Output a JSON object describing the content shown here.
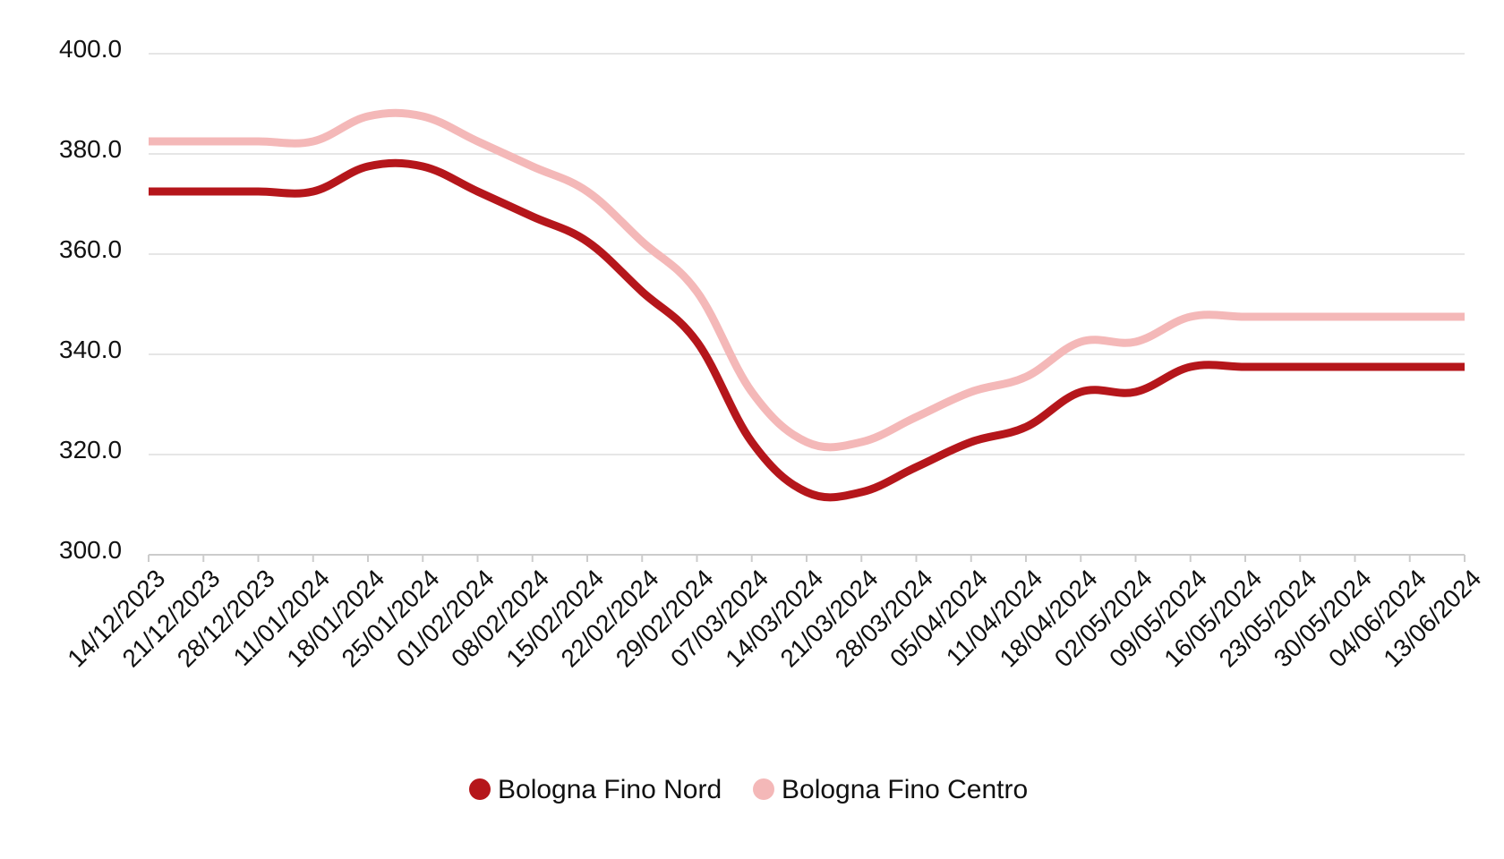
{
  "chart_data": {
    "type": "line",
    "title": "",
    "xlabel": "",
    "ylabel": "",
    "ylim": [
      300,
      400
    ],
    "y_ticks": [
      "300.0",
      "320.0",
      "340.0",
      "360.0",
      "380.0",
      "400.0"
    ],
    "grid": true,
    "legend_position": "bottom-center",
    "categories": [
      "14/12/2023",
      "21/12/2023",
      "28/12/2023",
      "11/01/2024",
      "18/01/2024",
      "25/01/2024",
      "01/02/2024",
      "08/02/2024",
      "15/02/2024",
      "22/02/2024",
      "29/02/2024",
      "07/03/2024",
      "14/03/2024",
      "21/03/2024",
      "28/03/2024",
      "05/04/2024",
      "11/04/2024",
      "18/04/2024",
      "02/05/2024",
      "09/05/2024",
      "16/05/2024",
      "23/05/2024",
      "30/05/2024",
      "04/06/2024",
      "13/06/2024"
    ],
    "series": [
      {
        "name": "Bologna Fino Nord",
        "color": "#b5161b",
        "values": [
          372.5,
          372.5,
          372.5,
          372.5,
          377.5,
          377.5,
          372.5,
          367.5,
          362.5,
          352.5,
          342.5,
          322.5,
          312.5,
          312.5,
          317.5,
          322.5,
          325.5,
          332.5,
          332.5,
          337.5,
          337.5,
          337.5,
          337.5,
          337.5,
          337.5
        ]
      },
      {
        "name": "Bologna Fino Centro",
        "color": "#f4b8b8",
        "values": [
          382.5,
          382.5,
          382.5,
          382.5,
          387.5,
          387.5,
          382.5,
          377.5,
          372.5,
          362.5,
          352.5,
          332.5,
          322.5,
          322.5,
          327.5,
          332.5,
          335.5,
          342.5,
          342.5,
          347.5,
          347.5,
          347.5,
          347.5,
          347.5,
          347.5
        ]
      }
    ]
  }
}
